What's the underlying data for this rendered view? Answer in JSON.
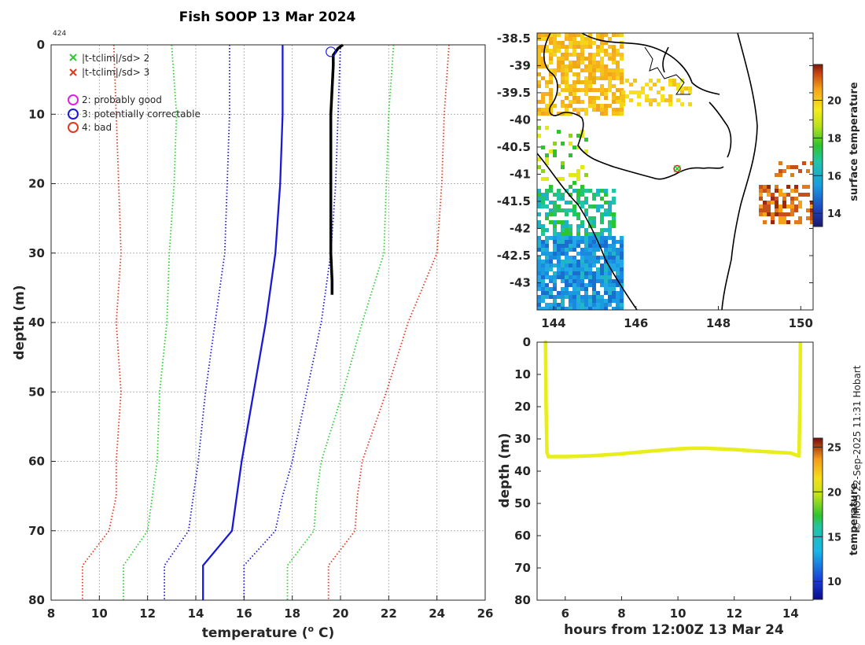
{
  "title": "Fish SOOP 13 Mar 2024",
  "profile_id": "424",
  "credit": "© IMOS 22-Sep-2025 11:31 Hobart",
  "colors": {
    "clim_2sd": "#2ecc2e",
    "clim_3sd": "#e03a1e",
    "clim_1sd": "#1a1ad6",
    "mean": "#1a1ad6",
    "profile": "#000000",
    "trace": "#e8ee1a"
  },
  "chart_data": [
    {
      "type": "line",
      "name": "profile",
      "title": "Fish SOOP 13 Mar 2024",
      "xlabel": "temperature (° C)",
      "ylabel": "depth (m)",
      "xlim": [
        8,
        26
      ],
      "ylim": [
        0,
        80
      ],
      "xticks": [
        8,
        10,
        12,
        14,
        16,
        18,
        20,
        22,
        24,
        26
      ],
      "yticks": [
        0,
        10,
        20,
        30,
        40,
        50,
        60,
        70,
        80
      ],
      "legend": [
        {
          "marker": "x",
          "color": "#2ecc2e",
          "label": "|t-tclim|/sd> 2"
        },
        {
          "marker": "x",
          "color": "#e03a1e",
          "label": "|t-tclim|/sd> 3"
        },
        {
          "marker": "o",
          "color": "#dd22dd",
          "label": "2: probably good"
        },
        {
          "marker": "o",
          "color": "#1a1ad6",
          "label": "3: potentially correctable"
        },
        {
          "marker": "o",
          "color": "#e03a1e",
          "label": "4: bad"
        }
      ],
      "flag_marker": {
        "temp": 19.6,
        "depth": 1,
        "flag": "3: potentially correctable"
      },
      "series": [
        {
          "name": "clim-3sd",
          "style": "dotted",
          "color": "#e03a1e",
          "temp": [
            10.6,
            10.7,
            10.8,
            10.9,
            10.7,
            10.9,
            10.7,
            10.7,
            10.4,
            9.3,
            9.3
          ],
          "depth": [
            0,
            10,
            20,
            30,
            40,
            50,
            60,
            65,
            70,
            75,
            80
          ]
        },
        {
          "name": "clim-2sd",
          "style": "dotted",
          "color": "#2ecc2e",
          "temp": [
            13.0,
            13.2,
            13.1,
            12.9,
            12.8,
            12.5,
            12.4,
            12.2,
            12.0,
            11.0,
            11.0
          ],
          "depth": [
            0,
            10,
            20,
            30,
            40,
            50,
            60,
            65,
            70,
            75,
            80
          ]
        },
        {
          "name": "clim-1sd",
          "style": "dotted",
          "color": "#1a1ad6",
          "temp": [
            15.4,
            15.4,
            15.3,
            15.2,
            14.8,
            14.4,
            14.1,
            13.9,
            13.7,
            12.7,
            12.7
          ],
          "depth": [
            0,
            10,
            20,
            30,
            40,
            50,
            60,
            65,
            70,
            75,
            80
          ]
        },
        {
          "name": "clim-mean",
          "style": "solid",
          "color": "#1a1ad6",
          "temp": [
            17.6,
            17.6,
            17.5,
            17.3,
            16.9,
            16.4,
            15.9,
            15.7,
            15.5,
            14.3,
            14.3
          ],
          "depth": [
            0,
            10,
            20,
            30,
            40,
            50,
            60,
            65,
            70,
            75,
            80
          ]
        },
        {
          "name": "clim+1sd",
          "style": "dotted",
          "color": "#1a1ad6",
          "temp": [
            20.0,
            19.9,
            19.8,
            19.6,
            19.2,
            18.6,
            18.0,
            17.6,
            17.3,
            16.0,
            16.0
          ],
          "depth": [
            0,
            10,
            20,
            30,
            40,
            50,
            60,
            65,
            70,
            75,
            80
          ]
        },
        {
          "name": "clim+2sd",
          "style": "dotted",
          "color": "#2ecc2e",
          "temp": [
            22.2,
            22.0,
            21.9,
            21.8,
            20.9,
            20.1,
            19.2,
            19.0,
            18.9,
            17.8,
            17.8
          ],
          "depth": [
            0,
            10,
            20,
            30,
            40,
            50,
            60,
            65,
            70,
            75,
            80
          ]
        },
        {
          "name": "clim+3sd",
          "style": "dotted",
          "color": "#e03a1e",
          "temp": [
            24.5,
            24.3,
            24.2,
            24.0,
            22.8,
            21.9,
            20.9,
            20.7,
            20.6,
            19.5,
            19.5
          ],
          "depth": [
            0,
            10,
            20,
            30,
            40,
            50,
            60,
            65,
            70,
            75,
            80
          ]
        },
        {
          "name": "observed",
          "style": "solid",
          "color": "#000000",
          "temp": [
            20.1,
            19.9,
            19.7,
            19.7,
            19.6,
            19.6,
            19.6,
            19.65,
            19.65
          ],
          "depth": [
            0,
            0.5,
            1.5,
            3,
            10,
            20,
            30,
            34,
            36
          ]
        }
      ]
    },
    {
      "type": "heatmap",
      "name": "map",
      "xlim": [
        143.6,
        150.3
      ],
      "ylim": [
        -43.5,
        -38.4
      ],
      "xticks": [
        144,
        146,
        148,
        150
      ],
      "yticks": [
        -38.5,
        -39,
        -39.5,
        -40,
        -40.5,
        -41,
        -41.5,
        -42,
        -42.5,
        -43
      ],
      "ytick_labels": [
        "-38.5",
        "-39",
        "-39.5",
        "-40",
        "-40.5",
        "-41",
        "-41.5",
        "-42",
        "-42.5",
        "-43"
      ],
      "colorbar_label": "surface temperature",
      "colorbar_range": [
        13.3,
        21.9
      ],
      "colorbar_ticks": [
        14,
        16,
        18,
        20
      ],
      "station": {
        "lon": 147.0,
        "lat": -40.9
      }
    },
    {
      "type": "scatter",
      "name": "trace",
      "xlabel": "hours from 12:00Z 13 Mar 24",
      "ylabel": "depth (m)",
      "xlim": [
        5,
        14.8
      ],
      "ylim": [
        0,
        80
      ],
      "xticks": [
        6,
        8,
        10,
        12,
        14
      ],
      "yticks": [
        0,
        10,
        20,
        30,
        40,
        50,
        60,
        70,
        80
      ],
      "colorbar_label": "temperature",
      "colorbar_range": [
        8,
        26
      ],
      "colorbar_ticks": [
        10,
        15,
        20,
        25
      ],
      "x": [
        5.3,
        5.32,
        5.35,
        5.4,
        6,
        7,
        8,
        9,
        10,
        10.5,
        11,
        12,
        13,
        14,
        14.3,
        14.33,
        14.35
      ],
      "y": [
        0,
        20,
        34,
        35.5,
        35.5,
        35.2,
        34.6,
        33.8,
        33.1,
        32.9,
        32.9,
        33.3,
        33.9,
        34.4,
        35.3,
        20,
        0
      ]
    }
  ]
}
